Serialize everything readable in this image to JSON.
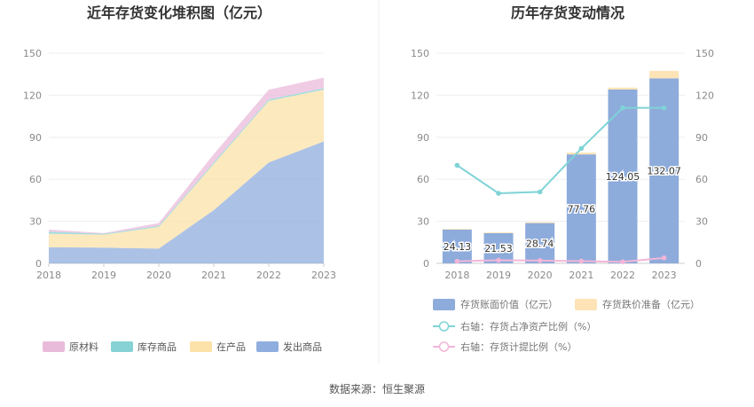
{
  "chart_data": [
    {
      "type": "area",
      "stacked": true,
      "title": "近年存货变化堆积图（亿元）",
      "x": [
        "2018",
        "2019",
        "2020",
        "2021",
        "2022",
        "2023"
      ],
      "ylim": [
        0,
        150
      ],
      "yticks": [
        "0",
        "30",
        "60",
        "90",
        "120",
        "150"
      ],
      "grid": true,
      "legend_position": "bottom",
      "series": [
        {
          "name": "发出商品",
          "color": "#8fadde",
          "values": [
            11.5,
            11.2,
            10.5,
            38,
            72,
            87
          ]
        },
        {
          "name": "在产品",
          "color": "#fce1a8",
          "values": [
            9.6,
            9.3,
            15.5,
            33,
            44,
            37
          ]
        },
        {
          "name": "库存商品",
          "color": "#86d2d4",
          "values": [
            1.5,
            0.6,
            0.8,
            1.0,
            1.0,
            1.0
          ]
        },
        {
          "name": "原材料",
          "color": "#e9bbdb",
          "values": [
            1.5,
            0.5,
            2.0,
            6.0,
            7.0,
            7.5
          ]
        }
      ]
    },
    {
      "type": "bar",
      "title": "历年存货变动情况",
      "categories": [
        "2018",
        "2019",
        "2020",
        "2021",
        "2022",
        "2023"
      ],
      "ylim": [
        0,
        150
      ],
      "yticks": [
        "0",
        "30",
        "60",
        "90",
        "120",
        "150"
      ],
      "y2lim": [
        0,
        150
      ],
      "y2ticks": [
        "0",
        "30",
        "60",
        "90",
        "120",
        "150"
      ],
      "grid": true,
      "legend_position": "bottom",
      "series": [
        {
          "name": "存货账面价值（亿元）",
          "color": "#8dabdb",
          "values": [
            24.13,
            21.53,
            28.74,
            77.76,
            124.05,
            132.07
          ],
          "labels": [
            "24.13",
            "21.53",
            "28.74",
            "77.76",
            "124.05",
            "132.07"
          ]
        },
        {
          "name": "存货跌价准备（亿元）",
          "color": "#fde3b6",
          "values": [
            0.4,
            0.5,
            0.6,
            1.3,
            1.4,
            5.3
          ]
        },
        {
          "name": "右轴：存货占净资产比例（%）",
          "type": "line",
          "axis": "right",
          "color": "#7fd3d6",
          "values": [
            70,
            50,
            51,
            82,
            111,
            111
          ]
        },
        {
          "name": "右轴：存货计提比例（%）",
          "type": "line",
          "axis": "right",
          "color": "#f2b6d8",
          "values": [
            1.5,
            2.2,
            2.0,
            1.6,
            1.1,
            3.9
          ]
        }
      ]
    }
  ],
  "source": "数据来源：恒生聚源"
}
